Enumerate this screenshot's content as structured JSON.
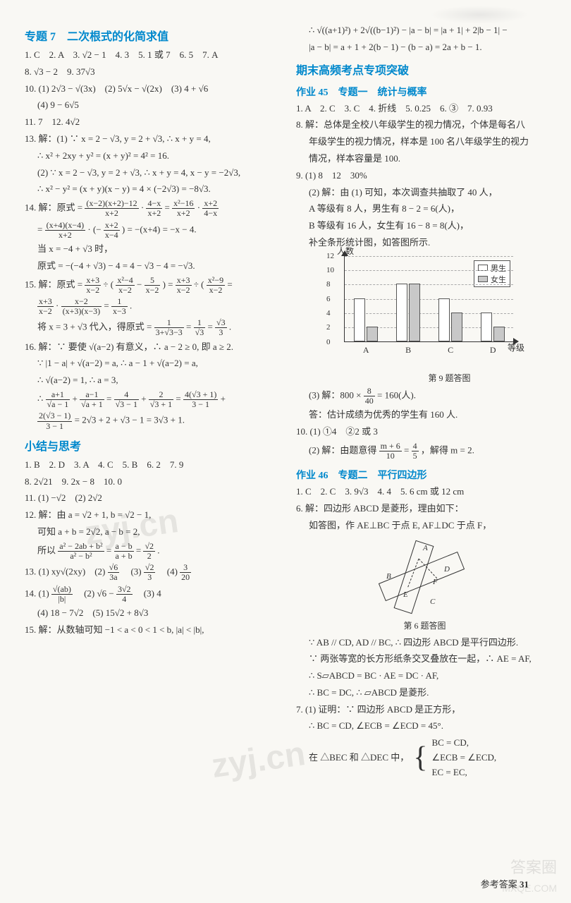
{
  "left": {
    "title7": "专题 7　二次根式的化简求值",
    "l1": "1. C　2. A　3. √2 − 1　4. 3　5. 1 或 7　6. 5　7. A",
    "l2": "8. √3 − 2　9. 37√3",
    "l3": "10. (1) 2√3 − √(3x)　(2) 5√x − √(2x)　(3) 4 + √6",
    "l3b": "(4) 9 − 6√5",
    "l4": "11. 7　12. 4√2",
    "l5": "13. 解：(1) ∵ x = 2 − √3, y = 2 + √3, ∴ x + y = 4,",
    "l5b": "∴ x² + 2xy + y² = (x + y)² = 4² = 16.",
    "l5c": "(2) ∵ x = 2 − √3, y = 2 + √3, ∴ x + y = 4, x − y = −2√3,",
    "l5d": "∴ x² − y² = (x + y)(x − y) = 4 × (−2√3) = −8√3.",
    "l6pre": "14. 解：原式 = ",
    "l6a_num": "(x−2)(x+2)−12",
    "l6a_den": "x+2",
    "l6b_num": "4−x",
    "l6b_den": "x+2",
    "l6c_num": "x²−16",
    "l6c_den": "x+2",
    "l6d_num": "x+2",
    "l6d_den": "4−x",
    "l6dot": " · ",
    "l6eq": " = ",
    "l7a_num": "(x+4)(x−4)",
    "l7a_den": "x+2",
    "l7b_num": "x+2",
    "l7b_den": "x−4",
    "l7tail": ") = −(x+4) = −x − 4.",
    "l7pre2": " · (−",
    "l8": "当 x = −4 + √3 时，",
    "l9": "原式 = −(−4 + √3) − 4 = 4 − √3 − 4 = −√3.",
    "l10pre": "15. 解：原式 = ",
    "l10a_num": "x+3",
    "l10a_den": "x−2",
    "l10div": " ÷ (",
    "l10b_num": "x²−4",
    "l10b_den": "x−2",
    "l10minus": " − ",
    "l10c_num": "5",
    "l10c_den": "x−2",
    "l10close": ") = ",
    "l10d_num": "x+3",
    "l10d_den": "x−2",
    "l10e_num": "x²−9",
    "l10e_den": "x−2",
    "l11a_num": "x+3",
    "l11a_den": "x−2",
    "l11b_num": "x−2",
    "l11b_den": "(x+3)(x−3)",
    "l11c_num": "1",
    "l11c_den": "x−3",
    "l11pre": "= ",
    "l11dot": " · ",
    "l11eq": " = ",
    "l11period": ".",
    "l12pre": "将 x = 3 + √3 代入，得原式 = ",
    "l12a_num": "1",
    "l12a_den": "3+√3−3",
    "l12b_num": "1",
    "l12b_den": "√3",
    "l12c_num": "√3",
    "l12c_den": "3",
    "l13": "16. 解：∵ 要使 √(a−2) 有意义，∴ a − 2 ≥ 0, 即 a ≥ 2.",
    "l14": "∵ |1 − a| + √(a−2) = a, ∴ a − 1 + √(a−2) = a,",
    "l15": "∴ √(a−2) = 1, ∴ a = 3,",
    "l16pre": "∴ ",
    "l16a_num": "a+1",
    "l16a_den": "√a − 1",
    "l16plus": " + ",
    "l16b_num": "a−1",
    "l16b_den": "√a + 1",
    "l16c_num": "4",
    "l16c_den": "√3 − 1",
    "l16d_num": "2",
    "l16d_den": "√3 + 1",
    "l16e_num": "4(√3 + 1)",
    "l16e_den": "3 − 1",
    "l17a_num": "2(√3 − 1)",
    "l17a_den": "3 − 1",
    "l17tail": " = 2√3 + 2 + √3 − 1 = 3√3 + 1.",
    "sub_summary": "小结与思考",
    "s1": "1. B　2. D　3. A　4. C　5. B　6. 2　7. 9",
    "s2": "8. 2√21　9. 2x − 8　10. 0",
    "s3": "11. (1) −√2　(2) 2√2",
    "s4": "12. 解：由 a = √2 + 1, b = √2 − 1,",
    "s5": "可知 a + b = 2√2, a − b = 2,",
    "s6pre": "所以 ",
    "s6a_num": "a² − 2ab + b²",
    "s6a_den": "a² − b²",
    "s6b_num": "a − b",
    "s6b_den": "a + b",
    "s6c_num": "√2",
    "s6c_den": "2",
    "s7": "13. (1) xy√(2xy)　(2) ",
    "s7b_num": "√6",
    "s7b_den": "3a",
    "s7c": "　(3) ",
    "s7c_num": "√2",
    "s7c_den": "3",
    "s7d": "　(4) ",
    "s7d_num": "3",
    "s7d_den": "20",
    "s8": "14. (1) ",
    "s8a_num": "√(ab)",
    "s8a_den": "|b|",
    "s8b": "　(2) √6 − ",
    "s8b_num": "3√2",
    "s8b_den": "4",
    "s8c": "　(3) 4",
    "s9": "(4) 18 − 7√2　(5) 15√2 + 8√3",
    "s10": "15. 解：从数轴可知 −1 < a < 0 < 1 < b, |a| < |b|,"
  },
  "right": {
    "r1": "∴ √((a+1)²) + 2√((b−1)²) − |a − b| = |a + 1| + 2|b − 1| −",
    "r1b": "|a − b| = a + 1 + 2(b − 1) − (b − a) = 2a + b − 1.",
    "title_exam": "期末高频考点专项突破",
    "hw45": "作业 45　专题一　统计与概率",
    "a1": "1. A　2. C　3. C　4. 折线　5. 0.25　6. ③　7. 0.93",
    "a2": "8. 解：总体是全校八年级学生的视力情况，个体是每名八",
    "a2b": "年级学生的视力情况，样本是 100 名八年级学生的视力",
    "a2c": "情况，样本容量是 100.",
    "a3": "9. (1) 8　12　30%",
    "a4": "(2) 解：由 (1) 可知，本次调查共抽取了 40 人，",
    "a5": "A 等级有 8 人，男生有 8 − 2 = 6(人)，",
    "a6": "B 等级有 16 人，女生有 16 − 8 = 8(人)，",
    "a7": "补全条形统计图，如答图所示.",
    "chart": {
      "ylabel": "人数",
      "xlabel": "等级",
      "ymax": 12,
      "ystep": 2,
      "yticks": [
        0,
        2,
        4,
        6,
        8,
        10,
        12
      ],
      "categories": [
        "A",
        "B",
        "C",
        "D"
      ],
      "series": {
        "male": {
          "label": "男生",
          "color": "#ffffff",
          "values": [
            6,
            8,
            6,
            4
          ]
        },
        "female": {
          "label": "女生",
          "color": "#c8c8c8",
          "values": [
            2,
            8,
            4,
            2
          ]
        }
      },
      "caption": "第 9 题答图"
    },
    "a8pre": "(3) 解：800 × ",
    "a8_num": "8",
    "a8_den": "40",
    "a8tail": " = 160(人).",
    "a9": "答：估计成绩为优秀的学生有 160 人.",
    "a10": "10. (1) ①4　②2 或 3",
    "a11pre": "(2) 解：由题意得 ",
    "a11a_num": "m + 6",
    "a11a_den": "10",
    "a11mid": " = ",
    "a11b_num": "4",
    "a11b_den": "5",
    "a11tail": "，解得 m = 2.",
    "hw46": "作业 46　专题二　平行四边形",
    "b1": "1. C　2. C　3. 9√3　4. 4　5. 6 cm 或 12 cm",
    "b2": "6. 解：四边形 ABCD 是菱形，理由如下：",
    "b3": "如答图，作 AE⊥BC 于点 E, AF⊥DC 于点 F，",
    "diagram_caption": "第 6 题答图",
    "b4": "∵ AB // CD, AD // BC, ∴ 四边形 ABCD 是平行四边形.",
    "b5": "∵ 两张等宽的长方形纸条交叉叠放在一起，∴ AE = AF,",
    "b6": "∴ S▱ABCD = BC · AE = DC · AF,",
    "b7": "∴ BC = DC, ∴ ▱ABCD 是菱形.",
    "b8": "7. (1) 证明：∵ 四边形 ABCD 是正方形，",
    "b9": "∴ BC = CD, ∠ECB = ∠ECD = 45°.",
    "b10pre": "在 △BEC 和 △DEC 中，",
    "brace1": "BC = CD,",
    "brace2": "∠ECB = ∠ECD,",
    "brace3": "EC = EC,"
  },
  "footer": {
    "label": "参考答案",
    "page": "31"
  }
}
